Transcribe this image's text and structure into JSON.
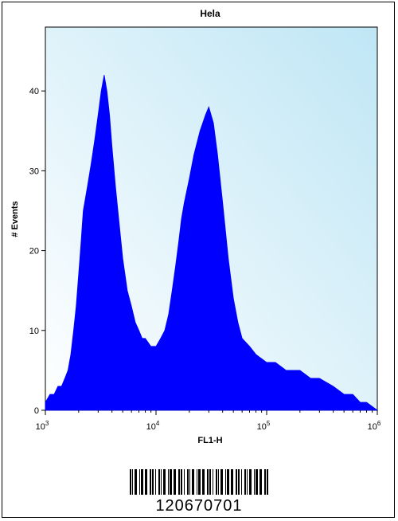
{
  "chart_data": {
    "type": "area",
    "title": "Hela",
    "xlabel": "FL1-H",
    "ylabel": "# Events",
    "x_scale": "log",
    "xlim": [
      1000,
      1000000
    ],
    "ylim": [
      0,
      48
    ],
    "x_ticks": [
      {
        "value": 1000,
        "base": "10",
        "exp": "3"
      },
      {
        "value": 10000,
        "base": "10",
        "exp": "4"
      },
      {
        "value": 100000,
        "base": "10",
        "exp": "5"
      },
      {
        "value": 1000000,
        "base": "10",
        "exp": "6"
      }
    ],
    "y_ticks": [
      {
        "value": 0,
        "label": "0"
      },
      {
        "value": 10,
        "label": "10"
      },
      {
        "value": 20,
        "label": "20"
      },
      {
        "value": 30,
        "label": "30"
      },
      {
        "value": 40,
        "label": "40"
      }
    ],
    "series": [
      {
        "color": "#0000ff",
        "points": [
          [
            1000,
            1
          ],
          [
            1100,
            2
          ],
          [
            1200,
            2
          ],
          [
            1300,
            3
          ],
          [
            1400,
            3
          ],
          [
            1500,
            4
          ],
          [
            1600,
            5
          ],
          [
            1700,
            7
          ],
          [
            1800,
            10
          ],
          [
            1900,
            13
          ],
          [
            2000,
            17
          ],
          [
            2100,
            21
          ],
          [
            2200,
            25
          ],
          [
            2400,
            28
          ],
          [
            2600,
            31
          ],
          [
            2800,
            34
          ],
          [
            3000,
            37
          ],
          [
            3200,
            40
          ],
          [
            3400,
            42
          ],
          [
            3600,
            40
          ],
          [
            3800,
            37
          ],
          [
            4000,
            33
          ],
          [
            4300,
            28
          ],
          [
            4600,
            24
          ],
          [
            5000,
            19
          ],
          [
            5500,
            15
          ],
          [
            6000,
            13
          ],
          [
            6500,
            11
          ],
          [
            7000,
            10
          ],
          [
            7500,
            9
          ],
          [
            8000,
            9
          ],
          [
            9000,
            8
          ],
          [
            10000,
            8
          ],
          [
            11000,
            9
          ],
          [
            12000,
            10
          ],
          [
            13000,
            12
          ],
          [
            14000,
            15
          ],
          [
            15000,
            18
          ],
          [
            16000,
            21
          ],
          [
            17000,
            24
          ],
          [
            18000,
            26
          ],
          [
            20000,
            29
          ],
          [
            22000,
            32
          ],
          [
            25000,
            35
          ],
          [
            28000,
            37
          ],
          [
            30000,
            38
          ],
          [
            33000,
            36
          ],
          [
            36000,
            32
          ],
          [
            40000,
            26
          ],
          [
            45000,
            19
          ],
          [
            50000,
            14
          ],
          [
            55000,
            11
          ],
          [
            60000,
            9
          ],
          [
            70000,
            8
          ],
          [
            80000,
            7
          ],
          [
            100000,
            6
          ],
          [
            120000,
            6
          ],
          [
            150000,
            5
          ],
          [
            200000,
            5
          ],
          [
            250000,
            4
          ],
          [
            300000,
            4
          ],
          [
            400000,
            3
          ],
          [
            500000,
            2
          ],
          [
            600000,
            2
          ],
          [
            700000,
            1
          ],
          [
            800000,
            1
          ],
          [
            1000000,
            0
          ]
        ]
      }
    ],
    "plot_background": [
      "#ffffff",
      "#bfe6f5"
    ]
  },
  "barcode": {
    "number": "120670701"
  }
}
